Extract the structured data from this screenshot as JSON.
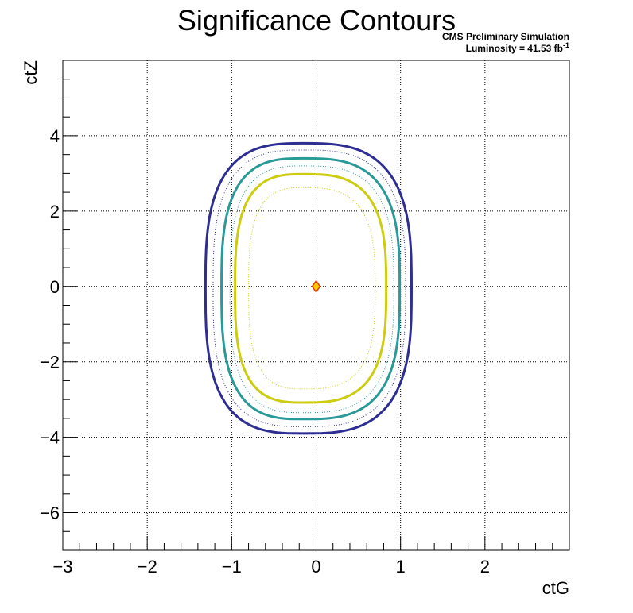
{
  "chart_data": {
    "type": "contour",
    "title": "Significance Contours",
    "annotation_line1": "CMS Preliminary Simulation",
    "annotation_line2_prefix": "Luminosity = 41.53 fb",
    "annotation_line2_sup": "-1",
    "xlabel": "ctG",
    "ylabel": "ctZ",
    "xlim": [
      -3,
      3
    ],
    "ylim": [
      -7,
      6
    ],
    "x_ticks": [
      {
        "value": -3,
        "label": "−3"
      },
      {
        "value": -2,
        "label": "−2"
      },
      {
        "value": -1,
        "label": "−1"
      },
      {
        "value": 0,
        "label": "0"
      },
      {
        "value": 1,
        "label": "1"
      },
      {
        "value": 2,
        "label": "2"
      }
    ],
    "y_ticks": [
      {
        "value": -6,
        "label": "−6"
      },
      {
        "value": -4,
        "label": "−4"
      },
      {
        "value": -2,
        "label": "−2"
      },
      {
        "value": 0,
        "label": "0"
      },
      {
        "value": 2,
        "label": "2"
      },
      {
        "value": 4,
        "label": "4"
      }
    ],
    "grid": true,
    "best_fit_point": {
      "x": 0,
      "y": 0,
      "fill": "#ffcc00",
      "stroke": "#e03a00"
    },
    "contours": [
      {
        "style": "solid",
        "color": "#2e2e92",
        "xmin": -1.31,
        "xmax": 1.13,
        "ymin": -3.9,
        "ymax": 3.8,
        "cx": -0.15,
        "cy": -0.05
      },
      {
        "style": "dotted",
        "color": "#2e2e92",
        "xmin": -1.22,
        "xmax": 1.06,
        "ymin": -3.72,
        "ymax": 3.62,
        "cx": -0.15,
        "cy": -0.05
      },
      {
        "style": "solid",
        "color": "#2a9a98",
        "xmin": -1.12,
        "xmax": 0.99,
        "ymin": -3.52,
        "ymax": 3.4,
        "cx": -0.15,
        "cy": -0.05
      },
      {
        "style": "dotted",
        "color": "#2a9a98",
        "xmin": -1.02,
        "xmax": 0.92,
        "ymin": -3.35,
        "ymax": 3.2,
        "cx": -0.15,
        "cy": -0.05
      },
      {
        "style": "solid",
        "color": "#cccc10",
        "xmin": -0.96,
        "xmax": 0.83,
        "ymin": -3.08,
        "ymax": 2.98,
        "cx": -0.15,
        "cy": -0.05
      },
      {
        "style": "dotted",
        "color": "#cccc10",
        "xmin": -0.8,
        "xmax": 0.7,
        "ymin": -2.72,
        "ymax": 2.62,
        "cx": -0.15,
        "cy": -0.05
      }
    ]
  }
}
